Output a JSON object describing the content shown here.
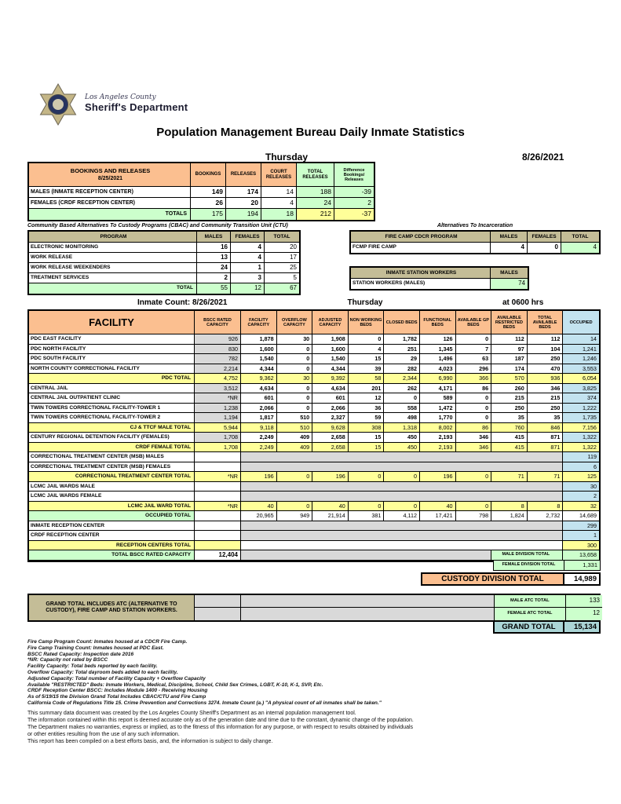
{
  "header": {
    "agency_line1": "Los Angeles County",
    "agency_line2": "Sheriff's Department",
    "title": "Population Management Bureau Daily Inmate Statistics",
    "day": "Thursday",
    "date": "8/26/2021"
  },
  "bookings": {
    "title": "BOOKINGS AND RELEASES",
    "subtitle": "8/25/2021",
    "columns": [
      "BOOKINGS",
      "RELEASES",
      "COURT RELEASES",
      "TOTAL RELEASES",
      "Difference Bookings/ Releases"
    ],
    "rows": [
      {
        "label": "MALES (INMATE RECEPTION CENTER)",
        "values": [
          "149",
          "174",
          "14",
          "188",
          "-39"
        ]
      },
      {
        "label": "FEMALES (CRDF RECEPTION CENTER)",
        "values": [
          "26",
          "20",
          "4",
          "24",
          "2"
        ]
      }
    ],
    "totals": {
      "label": "TOTALS",
      "values": [
        "175",
        "194",
        "18",
        "212",
        "-37"
      ]
    }
  },
  "cbac": {
    "heading": "Community Based Alternatives To Custody Programs (CBAC) and Community Transition Unit (CTU)",
    "columns": [
      "PROGRAM",
      "MALES",
      "FEMALES",
      "TOTAL"
    ],
    "rows": [
      {
        "label": "ELECTRONIC MONITORING",
        "values": [
          "16",
          "4",
          "20"
        ]
      },
      {
        "label": "WORK RELEASE",
        "values": [
          "13",
          "4",
          "17"
        ]
      },
      {
        "label": "WORK RELEASE WEEKENDERS",
        "values": [
          "24",
          "1",
          "25"
        ]
      },
      {
        "label": "TREATMENT SERVICES",
        "values": [
          "2",
          "3",
          "5"
        ]
      }
    ],
    "totals": {
      "label": "TOTAL",
      "values": [
        "55",
        "12",
        "67"
      ]
    }
  },
  "ati": {
    "heading": "Alternatives To Incarceration",
    "fire_camp": {
      "columns": [
        "FIRE CAMP CDCR PROGRAM",
        "MALES",
        "FEMALES",
        "TOTAL"
      ],
      "row": {
        "label": "FCMP FIRE CAMP",
        "values": [
          "4",
          "0",
          "4"
        ]
      }
    },
    "station_workers": {
      "columns": [
        "INMATE STATION WORKERS",
        "MALES"
      ],
      "row": {
        "label": "STATION WORKERS (MALES)",
        "value": "74"
      }
    }
  },
  "facility_table": {
    "count_label": "Inmate Count: 8/26/2021",
    "day": "Thursday",
    "time": "at 0600 hrs",
    "columns": [
      "FACILITY",
      "BSCC RATED CAPACITY",
      "FACILITY CAPACITY",
      "OVERFLOW CAPACITY",
      "ADJUSTED CAPACITY",
      "NON WORKING BEDS",
      "CLOSED BEDS",
      "FUNCTIONAL BEDS",
      "AVAILABLE GP BEDS",
      "AVAILABLE RESTRICTED BEDS",
      "TOTAL AVAILABLE BEDS",
      "OCCUPIED"
    ],
    "rows": [
      {
        "style": "data",
        "label": "PDC EAST FACILITY",
        "cells": [
          "926",
          "1,878",
          "30",
          "1,908",
          "0",
          "1,782",
          "126",
          "0",
          "112",
          "112"
        ],
        "occupied": "14"
      },
      {
        "style": "data",
        "label": "PDC NORTH FACILITY",
        "cells": [
          "830",
          "1,600",
          "0",
          "1,600",
          "4",
          "251",
          "1,345",
          "7",
          "97",
          "104"
        ],
        "occupied": "1,241"
      },
      {
        "style": "data",
        "label": "PDC SOUTH FACILITY",
        "cells": [
          "782",
          "1,540",
          "0",
          "1,540",
          "15",
          "29",
          "1,496",
          "63",
          "187",
          "250"
        ],
        "occupied": "1,246"
      },
      {
        "style": "data",
        "label": "NORTH COUNTY CORRECTIONAL FACILITY",
        "cells": [
          "2,214",
          "4,344",
          "0",
          "4,344",
          "39",
          "282",
          "4,023",
          "296",
          "174",
          "470"
        ],
        "occupied": "3,553"
      },
      {
        "style": "total",
        "label": "PDC TOTAL",
        "cells": [
          "4,752",
          "9,362",
          "30",
          "9,392",
          "58",
          "2,344",
          "6,990",
          "366",
          "570",
          "936"
        ],
        "occupied": "6,054"
      },
      {
        "style": "data",
        "label": "CENTRAL JAIL",
        "cells": [
          "3,512",
          "4,634",
          "0",
          "4,634",
          "201",
          "262",
          "4,171",
          "86",
          "260",
          "346"
        ],
        "occupied": "3,825"
      },
      {
        "style": "data",
        "label": "CENTRAL JAIL OUTPATIENT CLINIC",
        "cells": [
          "*NR",
          "601",
          "0",
          "601",
          "12",
          "0",
          "589",
          "0",
          "215",
          "215"
        ],
        "occupied": "374"
      },
      {
        "style": "data",
        "label": "TWIN TOWERS CORRECTIONAL FACILITY-TOWER 1",
        "cells": [
          "1,238",
          "2,066",
          "0",
          "2,066",
          "36",
          "558",
          "1,472",
          "0",
          "250",
          "250"
        ],
        "occupied": "1,222"
      },
      {
        "style": "data",
        "label": "TWIN TOWERS CORRECTIONAL FACILITY-TOWER 2",
        "cells": [
          "1,194",
          "1,817",
          "510",
          "2,327",
          "59",
          "498",
          "1,770",
          "0",
          "35",
          "35"
        ],
        "occupied": "1,735"
      },
      {
        "style": "total",
        "label": "CJ & TTCF MALE TOTAL",
        "cells": [
          "5,944",
          "9,118",
          "510",
          "9,628",
          "308",
          "1,318",
          "8,002",
          "86",
          "760",
          "846"
        ],
        "occupied": "7,156"
      },
      {
        "style": "data",
        "label": "CENTURY REGIONAL DETENTION FACILITY (FEMALES)",
        "cells": [
          "1,708",
          "2,249",
          "409",
          "2,658",
          "15",
          "450",
          "2,193",
          "346",
          "415",
          "871"
        ],
        "occupied": "1,322"
      },
      {
        "style": "total",
        "label": "CRDF FEMALE TOTAL",
        "cells": [
          "1,708",
          "2,249",
          "409",
          "2,658",
          "15",
          "450",
          "2,193",
          "346",
          "415",
          "871"
        ],
        "occupied": "1,322"
      },
      {
        "style": "stub",
        "label": "CORRECTIONAL TREATMENT CENTER (MSB) MALES",
        "occupied": "119"
      },
      {
        "style": "stub",
        "label": "CORRECTIONAL TREATMENT CENTER (MSB) FEMALES",
        "occupied": "6"
      },
      {
        "style": "total",
        "label": "CORRECTIONAL TREATMENT CENTER  TOTAL",
        "cells": [
          "*NR",
          "196",
          "0",
          "196",
          "0",
          "0",
          "196",
          "0",
          "71",
          "71"
        ],
        "occupied": "125"
      },
      {
        "style": "stub",
        "label": "LCMC JAIL WARDS MALE",
        "occupied": "30"
      },
      {
        "style": "stub",
        "label": "LCMC JAIL WARDS FEMALE",
        "occupied": "2"
      },
      {
        "style": "total",
        "label": "LCMC JAIL WARD TOTAL",
        "cells": [
          "*NR",
          "40",
          "0",
          "40",
          "0",
          "0",
          "40",
          "0",
          "8",
          "8"
        ],
        "occupied": "32"
      },
      {
        "style": "green_total",
        "label": "OCCUPIED TOTAL",
        "cells": [
          "",
          "20,965",
          "949",
          "21,914",
          "381",
          "4,112",
          "17,421",
          "798",
          "1,824",
          "2,732"
        ],
        "occupied": "14,689"
      },
      {
        "style": "stub",
        "label": "INMATE RECEPTION CENTER",
        "occupied": "299"
      },
      {
        "style": "stub",
        "label": "CRDF RECEPTION CENTER",
        "occupied": "1"
      },
      {
        "style": "reception_total",
        "label": "RECEPTION CENTERS TOTAL",
        "occupied": "300"
      },
      {
        "style": "bscc",
        "label": "TOTAL BSCC RATED CAPACITY",
        "capacity": "12,404",
        "side_label": "MALE DIVISION TOTAL",
        "side_value": "13,658"
      }
    ]
  },
  "division": {
    "female_label": "FEMALE DIVISION TOTAL",
    "female_value": "1,331",
    "custody_label": "CUSTODY DIVISION TOTAL",
    "custody_value": "14,989"
  },
  "grand": {
    "note": "GRAND TOTAL INCLUDES ATC (ALTERNATIVE TO CUSTODY), FIRE CAMP AND STATION WORKERS.",
    "male_atc_label": "MALE ATC TOTAL",
    "male_atc_value": "133",
    "female_atc_label": "FEMALE ATC TOTAL",
    "female_atc_value": "12",
    "grand_label": "GRAND TOTAL",
    "grand_value": "15,134"
  },
  "footnotes": {
    "lines": [
      "Fire Camp Program Count: Inmates housed at a CDCR Fire Camp.",
      "Fire Camp Training Count: Inmates housed at PDC East.",
      "BSCC Rated Capacity: Inspection date 2016",
      "*NR: Capacity not rated by BSCC",
      "Facility Capacity: Total beds reported by each facility.",
      "Overflow Capacity: Total dayroom beds added to each facility.",
      "Adjusted Capacity: Total number of Facility Capacity + Overflow Capacity",
      "Available \"RESTRICTED\" Beds: Inmate Workers, Medical, Discipline, School, Child Sex Crimes, LGBT, K-10, K-1, SVP, Etc.",
      "CRDF Reception Center BSCC: Includes Module 1400 - Receiving Housing",
      "As of 5/19/15 the Division Grand Total Includes CBAC/CTU and Fire Camp",
      "California Code of Regulations Title 15. Crime Prevention and Corrections 3274. Inmate Count (a.) \"A physical count of all inmates shall be taken.\""
    ]
  },
  "disclaimer": {
    "lines": [
      "This summary data document was created by the Los Angeles County Sheriff's Department as an internal population management tool.",
      "The information contained within this report is deemed accurate only as of the generation date and time due to the constant, dynamic change of the population.",
      "The Department makes no warranties, express or implied, as to the fitness of this information for any purpose, or with respect to results obtained by individuals",
      "or other entities resulting from the use of any such information.",
      "This report has been compiled on a best efforts basis, and, the information is subject to daily change."
    ]
  }
}
